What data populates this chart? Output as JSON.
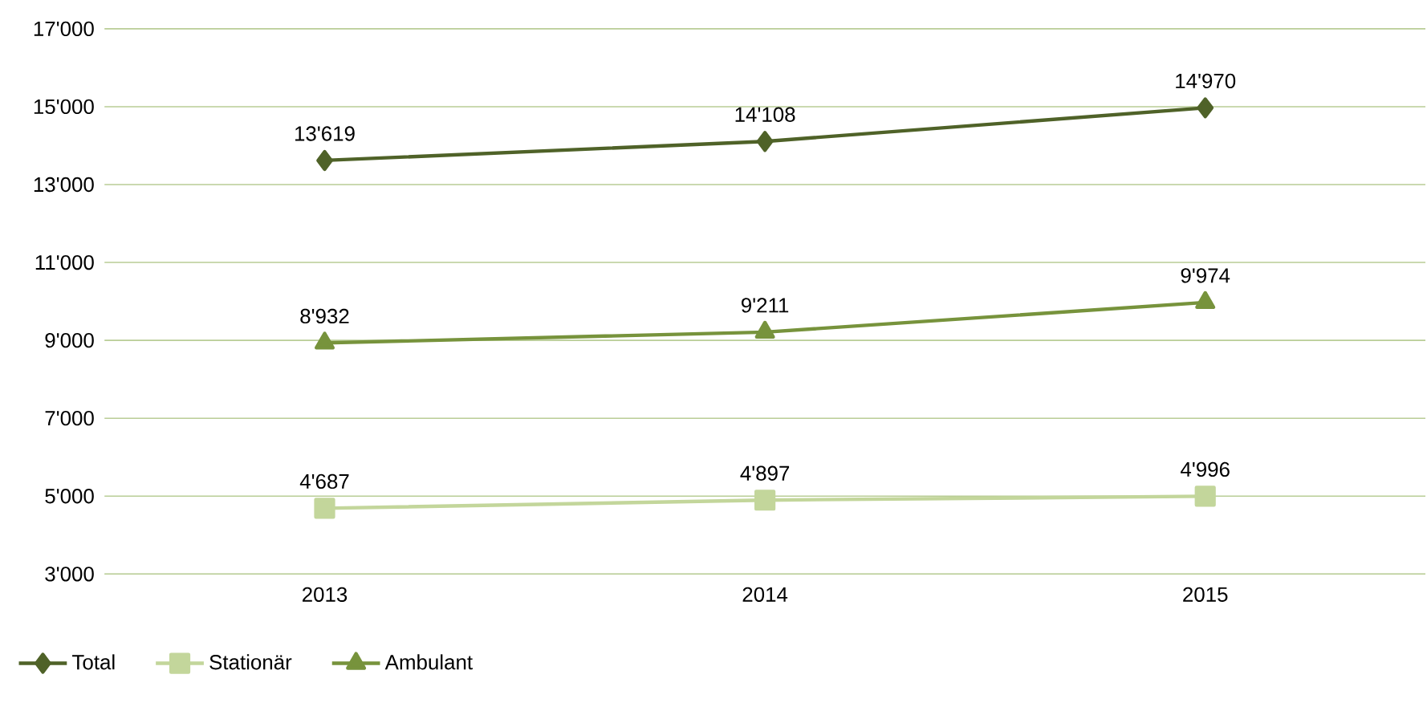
{
  "chart_data": {
    "type": "line",
    "categories": [
      "2013",
      "2014",
      "2015"
    ],
    "series": [
      {
        "name": "Total",
        "color": "#4f6228",
        "marker": "diamond",
        "values": [
          13619,
          14108,
          14970
        ],
        "value_labels": [
          "13'619",
          "14'108",
          "14'970"
        ]
      },
      {
        "name": "Stationär",
        "color": "#c3d69b",
        "marker": "square",
        "values": [
          4687,
          4897,
          4996
        ],
        "value_labels": [
          "4'687",
          "4'897",
          "4'996"
        ]
      },
      {
        "name": "Ambulant",
        "color": "#77933c",
        "marker": "triangle",
        "values": [
          8932,
          9211,
          9974
        ],
        "value_labels": [
          "8'932",
          "9'211",
          "9'974"
        ]
      }
    ],
    "ylim": [
      3000,
      17000
    ],
    "yticks": [
      {
        "value": 3000,
        "label": "3'000"
      },
      {
        "value": 5000,
        "label": "5'000"
      },
      {
        "value": 7000,
        "label": "7'000"
      },
      {
        "value": 9000,
        "label": "9'000"
      },
      {
        "value": 11000,
        "label": "11'000"
      },
      {
        "value": 13000,
        "label": "13'000"
      },
      {
        "value": 15000,
        "label": "15'000"
      },
      {
        "value": 17000,
        "label": "17'000"
      }
    ],
    "grid": "y",
    "legend": "bottom left"
  }
}
